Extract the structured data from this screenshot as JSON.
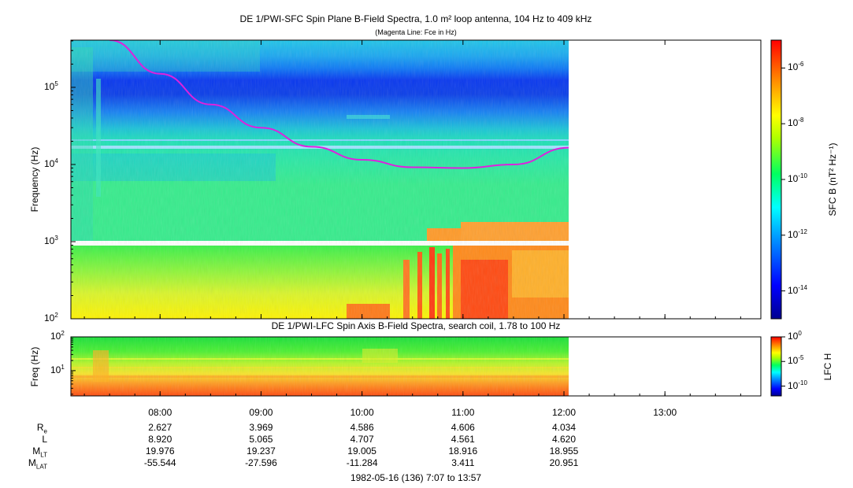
{
  "top_panel": {
    "title": "DE 1/PWI-SFC  Spin Plane B-Field Spectra, 1.0 m² loop antenna, 104 Hz to 409 kHz",
    "subtitle": "(Magenta Line: Fce in Hz)",
    "ylabel": "Frequency (Hz)",
    "yticks": [
      {
        "base": "10",
        "exp": "2",
        "v": 100
      },
      {
        "base": "10",
        "exp": "3",
        "v": 1000
      },
      {
        "base": "10",
        "exp": "4",
        "v": 10000
      },
      {
        "base": "10",
        "exp": "5",
        "v": 100000
      }
    ],
    "colorbar": {
      "label": "SFC B (nT² Hz⁻¹)",
      "ticks": [
        {
          "base": "10",
          "exp": "-6",
          "v": -6
        },
        {
          "base": "10",
          "exp": "-8",
          "v": -8
        },
        {
          "base": "10",
          "exp": "-10",
          "v": -10
        },
        {
          "base": "10",
          "exp": "-12",
          "v": -12
        },
        {
          "base": "10",
          "exp": "-14",
          "v": -14
        }
      ]
    }
  },
  "bottom_panel": {
    "title": "DE 1/PWI-LFC  Spin Axis B-Field Spectra, search coil, 1.78 to 100 Hz",
    "ylabel": "Freq (Hz)",
    "yticks": [
      {
        "base": "10",
        "exp": "2",
        "v": 100
      },
      {
        "base": "10",
        "exp": "1",
        "v": 10
      }
    ],
    "colorbar": {
      "label": "LFC H",
      "ticks": [
        {
          "base": "10",
          "exp": "0",
          "v": 0
        },
        {
          "base": "10",
          "exp": "-5",
          "v": -5
        },
        {
          "base": "10",
          "exp": "-10",
          "v": -10
        }
      ]
    }
  },
  "time_axis": {
    "ticks": [
      "08:00",
      "09:00",
      "10:00",
      "11:00",
      "12:00",
      "13:00"
    ],
    "footer": "1982-05-16 (136) 7:07 to 13:57"
  },
  "ephemeris": {
    "rows": [
      {
        "label": "R",
        "sub": "e",
        "values": [
          "2.627",
          "3.969",
          "4.586",
          "4.606",
          "4.034"
        ]
      },
      {
        "label": "L",
        "sub": "",
        "values": [
          "8.920",
          "5.065",
          "4.707",
          "4.561",
          "4.620"
        ]
      },
      {
        "label": "M",
        "sub": "LT",
        "values": [
          "19.976",
          "19.237",
          "19.005",
          "18.916",
          "18.955"
        ]
      },
      {
        "label": "M",
        "sub": "LAT",
        "values": [
          "-55.544",
          "-27.596",
          "-11.284",
          "3.411",
          "20.951"
        ]
      }
    ]
  },
  "chart_data": [
    {
      "type": "heatmap",
      "title": "DE 1/PWI-SFC  Spin Plane B-Field Spectra, 1.0 m² loop antenna, 104 Hz to 409 kHz",
      "x": {
        "start": "07:07",
        "end": "13:57",
        "data_end": "12:03",
        "ticks": [
          "08:00",
          "09:00",
          "10:00",
          "11:00",
          "12:00",
          "13:00"
        ]
      },
      "y": {
        "label": "Frequency (Hz)",
        "scale": "log",
        "range": [
          100,
          409000
        ]
      },
      "colorbar": {
        "label": "SFC B (nT² Hz⁻¹)",
        "scale": "log",
        "range": [
          -15,
          -5
        ]
      },
      "overlay": {
        "name": "Fce",
        "color": "#dd22dd",
        "points": [
          [
            "07:30",
            409000
          ],
          [
            "08:00",
            150000
          ],
          [
            "08:30",
            60000
          ],
          [
            "09:00",
            30000
          ],
          [
            "09:30",
            17000
          ],
          [
            "10:00",
            11500
          ],
          [
            "10:30",
            9200
          ],
          [
            "11:00",
            9000
          ],
          [
            "11:30",
            10000
          ],
          [
            "12:03",
            16500
          ]
        ]
      }
    },
    {
      "type": "heatmap",
      "title": "DE 1/PWI-LFC  Spin Axis B-Field Spectra, search coil, 1.78 to 100 Hz",
      "x": {
        "start": "07:07",
        "end": "13:57",
        "data_end": "12:03",
        "ticks": [
          "08:00",
          "09:00",
          "10:00",
          "11:00",
          "12:00",
          "13:00"
        ]
      },
      "y": {
        "label": "Freq (Hz)",
        "scale": "log",
        "range": [
          1.78,
          100
        ]
      },
      "colorbar": {
        "label": "LFC H",
        "scale": "log",
        "range": [
          -12,
          0
        ]
      }
    }
  ],
  "colors": {
    "fce_line": "#dd22dd",
    "gap_band": "#ffffff",
    "background": "#ffffff"
  }
}
